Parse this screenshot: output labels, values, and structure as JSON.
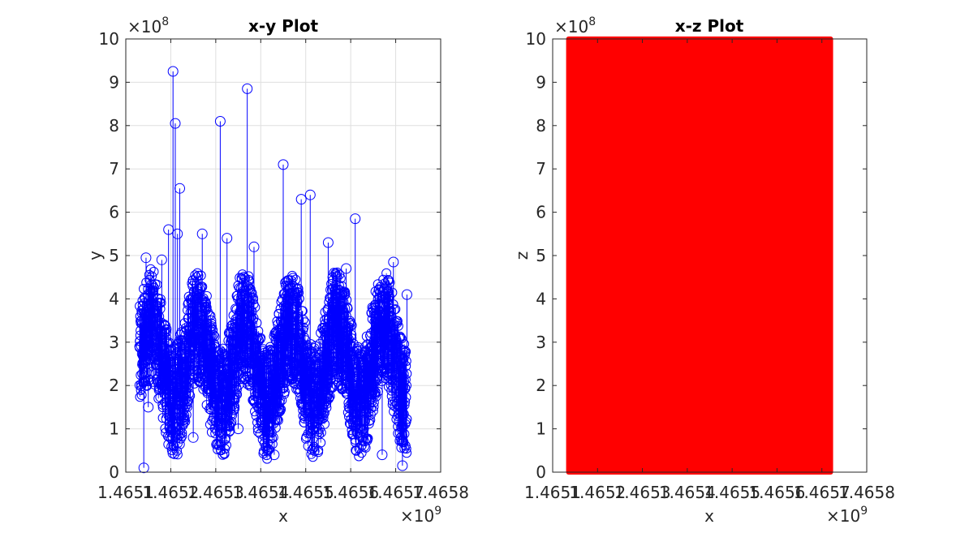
{
  "chart_data": [
    {
      "type": "scatter",
      "title": "x-y Plot",
      "xlabel": "x",
      "ylabel": "y",
      "x_exponent_label": "×10",
      "x_exponent": "9",
      "y_exponent_label": "×10",
      "y_exponent": "8",
      "xlim": [
        1.4651,
        1.4658
      ],
      "ylim": [
        0,
        10
      ],
      "xticks": [
        1.4651,
        1.4652,
        1.4653,
        1.4654,
        1.4655,
        1.4656,
        1.4657,
        1.4658
      ],
      "xtick_labels": [
        "1.4651",
        "1.4652",
        "1.4653",
        "1.4654",
        "1.4655",
        "1.4656",
        "1.4657",
        "1.4658"
      ],
      "yticks": [
        0,
        1,
        2,
        3,
        4,
        5,
        6,
        7,
        8,
        9,
        10
      ],
      "ytick_labels": [
        "0",
        "1",
        "2",
        "3",
        "4",
        "5",
        "6",
        "7",
        "8",
        "9",
        "10"
      ],
      "grid": true,
      "marker": "circle",
      "line": "thin connecting line",
      "color": "#0000ff",
      "series": [
        {
          "x": [
            1.46514,
            1.465145,
            1.46515,
            1.465165,
            1.46518,
            1.465195,
            1.465205,
            1.46521,
            1.465215,
            1.46522,
            1.46523,
            1.46525,
            1.46527,
            1.46529,
            1.46531,
            1.465325,
            1.46535,
            1.46537,
            1.465385,
            1.46541,
            1.46543,
            1.46545,
            1.46547,
            1.46549,
            1.46551,
            1.46553,
            1.46555,
            1.46557,
            1.46559,
            1.46561,
            1.46563,
            1.46565,
            1.46567,
            1.465695,
            1.465705,
            1.465715,
            1.465725
          ],
          "y": [
            0.1,
            4.95,
            1.5,
            2.6,
            4.9,
            5.6,
            9.25,
            8.05,
            5.5,
            6.55,
            2.0,
            0.8,
            5.5,
            1.5,
            8.1,
            5.4,
            1.0,
            8.85,
            5.2,
            1.6,
            0.4,
            7.1,
            2.3,
            6.3,
            6.4,
            1.0,
            5.3,
            2.0,
            4.7,
            5.85,
            0.6,
            2.5,
            0.4,
            4.85,
            1.3,
            0.15,
            4.1
          ],
          "values_estimated": true
        }
      ]
    },
    {
      "type": "scatter",
      "title": "x-z Plot",
      "xlabel": "x",
      "ylabel": "z",
      "x_exponent_label": "×10",
      "x_exponent": "9",
      "y_exponent_label": "×10",
      "y_exponent": "8",
      "xlim": [
        1.4651,
        1.4658
      ],
      "ylim": [
        0,
        10
      ],
      "xticks": [
        1.4651,
        1.4652,
        1.4653,
        1.4654,
        1.4655,
        1.4656,
        1.4657,
        1.4658
      ],
      "xtick_labels": [
        "1.4651",
        "1.4652",
        "1.4653",
        "1.4654",
        "1.4655",
        "1.4656",
        "1.4657",
        "1.4658"
      ],
      "yticks": [
        0,
        1,
        2,
        3,
        4,
        5,
        6,
        7,
        8,
        9,
        10
      ],
      "ytick_labels": [
        "0",
        "1",
        "2",
        "3",
        "4",
        "5",
        "6",
        "7",
        "8",
        "9",
        "10"
      ],
      "grid": false,
      "marker": "filled dense",
      "color": "#ff0000",
      "series": [
        {
          "x_range": [
            1.46513,
            1.465725
          ],
          "y_range": [
            0,
            10
          ],
          "description_visible": "solid red region filling x from about 1.46513 to 1.465725 and z from 0 to 10",
          "values_estimated": true
        }
      ]
    }
  ]
}
